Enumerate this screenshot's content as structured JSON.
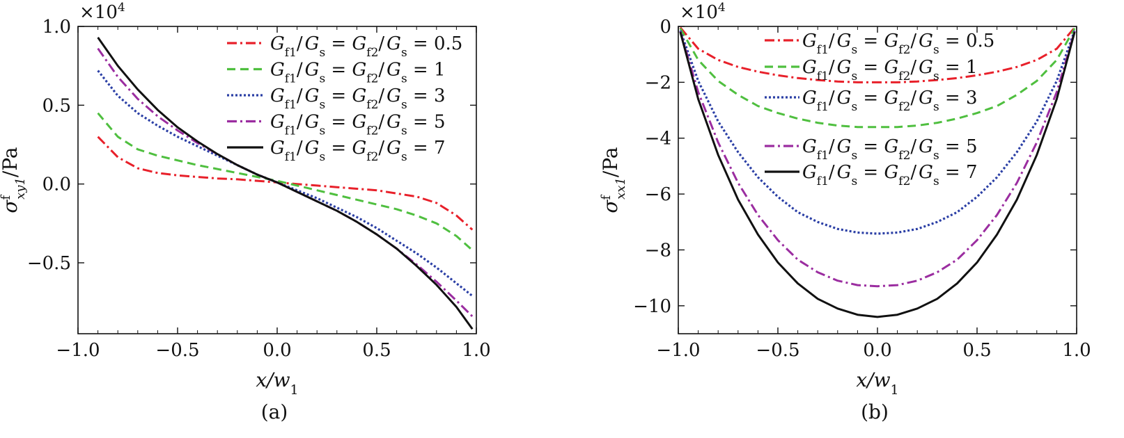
{
  "colors": {
    "red": "#e8202a",
    "green": "#4fbf3f",
    "blue": "#2b3fa5",
    "purple": "#9b2da0",
    "black": "#111111"
  },
  "chart_data": [
    {
      "type": "line",
      "caption": "(a)",
      "xlabel": "x/w1",
      "ylabel": "σfxy1/Pa",
      "exponent_label": "×10^4",
      "xlim": [
        -1.0,
        1.0
      ],
      "ylim": [
        -0.95,
        1.0
      ],
      "x_ticks": [
        "−1.0",
        "−0.5",
        "0.0",
        "0.5",
        "1.0"
      ],
      "y_ticks": [
        "−0.5",
        "0.0",
        "0.5",
        "1.0"
      ],
      "grid": false,
      "legend_position": "top-right",
      "x": [
        -0.9,
        -0.8,
        -0.7,
        -0.6,
        -0.5,
        -0.4,
        -0.3,
        -0.2,
        -0.1,
        0.0,
        0.1,
        0.2,
        0.3,
        0.4,
        0.5,
        0.6,
        0.7,
        0.8,
        0.9,
        0.98
      ],
      "series": [
        {
          "name": "Gf1/Gs = Gf2/Gs = 0.5",
          "color": "red",
          "dash": "dashdot",
          "values": [
            0.3,
            0.17,
            0.1,
            0.07,
            0.055,
            0.045,
            0.035,
            0.03,
            0.02,
            0.01,
            0.0,
            -0.01,
            -0.02,
            -0.03,
            -0.04,
            -0.06,
            -0.08,
            -0.12,
            -0.2,
            -0.29
          ]
        },
        {
          "name": "Gf1/Gs = Gf2/Gs = 1",
          "color": "green",
          "dash": "dashed",
          "values": [
            0.45,
            0.3,
            0.22,
            0.18,
            0.15,
            0.12,
            0.095,
            0.07,
            0.045,
            0.02,
            -0.01,
            -0.04,
            -0.07,
            -0.1,
            -0.13,
            -0.16,
            -0.2,
            -0.25,
            -0.33,
            -0.42
          ]
        },
        {
          "name": "Gf1/Gs = Gf2/Gs = 3",
          "color": "blue",
          "dash": "dotted",
          "values": [
            0.72,
            0.56,
            0.45,
            0.37,
            0.3,
            0.24,
            0.18,
            0.12,
            0.06,
            0.01,
            -0.04,
            -0.09,
            -0.15,
            -0.21,
            -0.28,
            -0.36,
            -0.44,
            -0.53,
            -0.63,
            -0.71
          ]
        },
        {
          "name": "Gf1/Gs = Gf2/Gs = 5",
          "color": "purple",
          "dash": "dashdot",
          "values": [
            0.86,
            0.68,
            0.54,
            0.43,
            0.34,
            0.26,
            0.19,
            0.12,
            0.06,
            0.01,
            -0.05,
            -0.11,
            -0.17,
            -0.24,
            -0.32,
            -0.41,
            -0.51,
            -0.62,
            -0.74,
            -0.84
          ]
        },
        {
          "name": "Gf1/Gs = Gf2/Gs = 7",
          "color": "black",
          "dash": "solid",
          "values": [
            0.93,
            0.75,
            0.6,
            0.47,
            0.36,
            0.27,
            0.19,
            0.12,
            0.06,
            0.01,
            -0.05,
            -0.11,
            -0.17,
            -0.24,
            -0.32,
            -0.41,
            -0.52,
            -0.64,
            -0.78,
            -0.92
          ]
        }
      ]
    },
    {
      "type": "line",
      "caption": "(b)",
      "xlabel": "x/w1",
      "ylabel": "σfxx1/Pa",
      "exponent_label": "×10^4",
      "xlim": [
        -1.0,
        1.0
      ],
      "ylim": [
        -11,
        0
      ],
      "x_ticks": [
        "−1.0",
        "−0.5",
        "0.0",
        "0.5",
        "1.0"
      ],
      "y_ticks": [
        "0",
        "−2",
        "−4",
        "−6",
        "−8",
        "−10"
      ],
      "grid": false,
      "legend_position": "top",
      "x": [
        -0.99,
        -0.9,
        -0.8,
        -0.7,
        -0.6,
        -0.5,
        -0.4,
        -0.3,
        -0.2,
        -0.1,
        0.0,
        0.1,
        0.2,
        0.3,
        0.4,
        0.5,
        0.6,
        0.7,
        0.8,
        0.9,
        0.99
      ],
      "series": [
        {
          "name": "Gf1/Gs = Gf2/Gs = 0.5",
          "color": "red",
          "dash": "dashdot",
          "values": [
            -0.04,
            -0.8,
            -1.2,
            -1.45,
            -1.62,
            -1.75,
            -1.85,
            -1.92,
            -1.97,
            -2.0,
            -2.0,
            -2.0,
            -1.97,
            -1.92,
            -1.85,
            -1.75,
            -1.62,
            -1.45,
            -1.2,
            -0.8,
            -0.04
          ]
        },
        {
          "name": "Gf1/Gs = Gf2/Gs = 1",
          "color": "green",
          "dash": "dashed",
          "values": [
            -0.07,
            -1.2,
            -1.95,
            -2.45,
            -2.85,
            -3.1,
            -3.3,
            -3.45,
            -3.55,
            -3.6,
            -3.6,
            -3.6,
            -3.55,
            -3.45,
            -3.3,
            -3.1,
            -2.85,
            -2.45,
            -1.95,
            -1.2,
            -0.07
          ]
        },
        {
          "name": "Gf1/Gs = Gf2/Gs = 3",
          "color": "blue",
          "dash": "dotted",
          "values": [
            -0.15,
            -1.95,
            -3.4,
            -4.5,
            -5.4,
            -6.1,
            -6.65,
            -7.0,
            -7.25,
            -7.38,
            -7.42,
            -7.38,
            -7.25,
            -7.0,
            -6.65,
            -6.1,
            -5.4,
            -4.5,
            -3.4,
            -1.95,
            -0.15
          ]
        },
        {
          "name": "Gf1/Gs = Gf2/Gs = 5",
          "color": "purple",
          "dash": "dashdot",
          "values": [
            -0.18,
            -2.35,
            -4.15,
            -5.6,
            -6.75,
            -7.65,
            -8.35,
            -8.8,
            -9.1,
            -9.26,
            -9.3,
            -9.26,
            -9.1,
            -8.8,
            -8.35,
            -7.65,
            -6.75,
            -5.6,
            -4.15,
            -2.35,
            -0.18
          ]
        },
        {
          "name": "Gf1/Gs = Gf2/Gs = 7",
          "color": "black",
          "dash": "solid",
          "values": [
            -0.2,
            -2.6,
            -4.6,
            -6.2,
            -7.45,
            -8.45,
            -9.2,
            -9.75,
            -10.1,
            -10.32,
            -10.4,
            -10.32,
            -10.1,
            -9.75,
            -9.2,
            -8.45,
            -7.45,
            -6.2,
            -4.6,
            -2.6,
            -0.2
          ]
        }
      ]
    }
  ]
}
